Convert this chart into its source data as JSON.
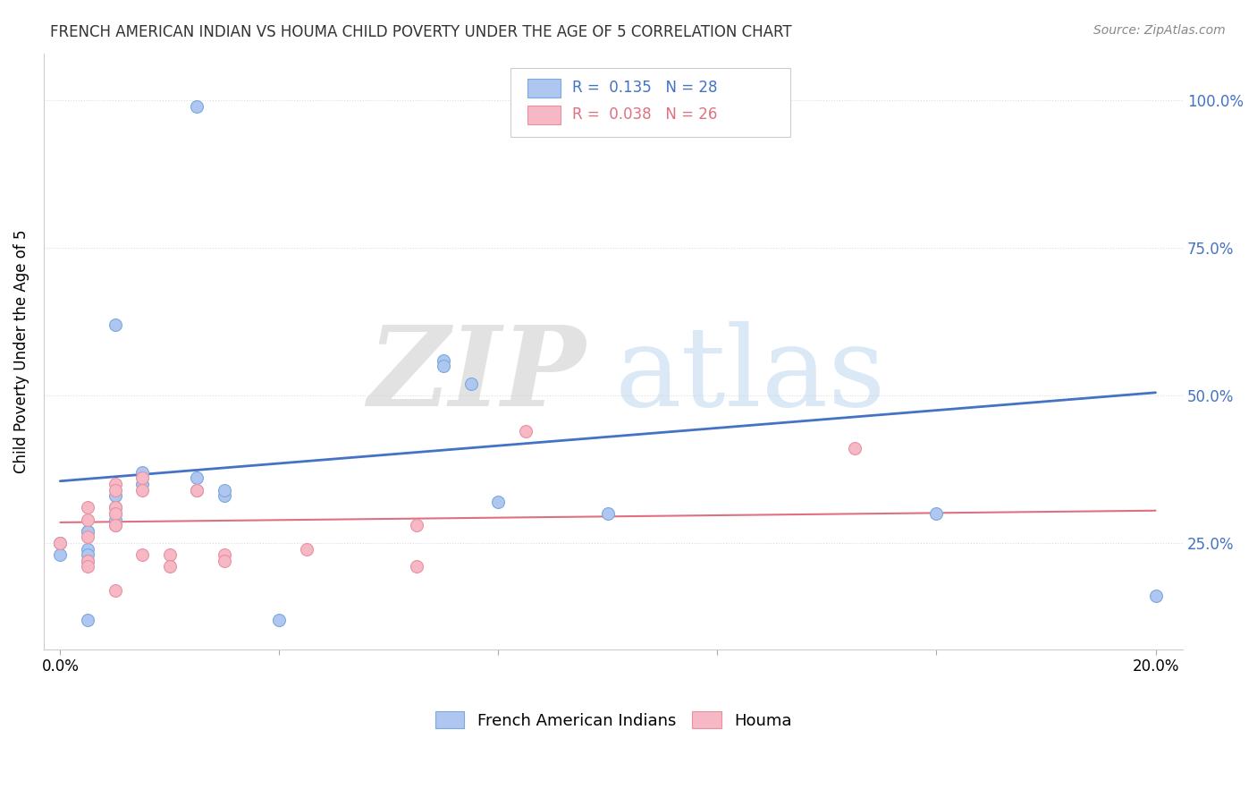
{
  "title": "FRENCH AMERICAN INDIAN VS HOUMA CHILD POVERTY UNDER THE AGE OF 5 CORRELATION CHART",
  "source": "Source: ZipAtlas.com",
  "ylabel": "Child Poverty Under the Age of 5",
  "yticks": [
    "100.0%",
    "75.0%",
    "50.0%",
    "25.0%"
  ],
  "ytick_vals": [
    1.0,
    0.75,
    0.5,
    0.25
  ],
  "blue_color": "#AEC6F0",
  "pink_color": "#F5B8C4",
  "blue_edge_color": "#7AAADE",
  "pink_edge_color": "#E891A0",
  "blue_line_color": "#4472C4",
  "pink_line_color": "#E07080",
  "blue_scatter_x": [
    0.025,
    0.01,
    0.01,
    0.01,
    0.005,
    0.005,
    0.005,
    0.005,
    0.005,
    0.01,
    0.01,
    0.015,
    0.015,
    0.025,
    0.025,
    0.03,
    0.03,
    0.07,
    0.07,
    0.075,
    0.08,
    0.1,
    0.16,
    0.2,
    0.0,
    0.0,
    0.005,
    0.04
  ],
  "blue_scatter_y": [
    0.99,
    0.62,
    0.31,
    0.3,
    0.27,
    0.27,
    0.24,
    0.23,
    0.22,
    0.29,
    0.33,
    0.35,
    0.37,
    0.36,
    0.34,
    0.33,
    0.34,
    0.56,
    0.55,
    0.52,
    0.32,
    0.3,
    0.3,
    0.16,
    0.25,
    0.23,
    0.12,
    0.12
  ],
  "pink_scatter_x": [
    0.005,
    0.005,
    0.005,
    0.0,
    0.005,
    0.005,
    0.01,
    0.01,
    0.01,
    0.01,
    0.01,
    0.01,
    0.01,
    0.015,
    0.015,
    0.015,
    0.02,
    0.02,
    0.025,
    0.03,
    0.03,
    0.045,
    0.065,
    0.065,
    0.085,
    0.145
  ],
  "pink_scatter_y": [
    0.31,
    0.29,
    0.26,
    0.25,
    0.22,
    0.21,
    0.35,
    0.34,
    0.31,
    0.3,
    0.28,
    0.28,
    0.17,
    0.36,
    0.34,
    0.23,
    0.23,
    0.21,
    0.34,
    0.23,
    0.22,
    0.24,
    0.28,
    0.21,
    0.44,
    0.41
  ],
  "blue_line_x": [
    0.0,
    0.2
  ],
  "blue_line_y": [
    0.355,
    0.505
  ],
  "pink_line_x": [
    0.0,
    0.2
  ],
  "pink_line_y": [
    0.285,
    0.305
  ],
  "xmin": -0.003,
  "xmax": 0.205,
  "ymin": 0.07,
  "ymax": 1.08,
  "xtick_positions": [
    0.0,
    0.04,
    0.08,
    0.12,
    0.16,
    0.2
  ],
  "legend_r1_text": "R =  0.135   N = 28",
  "legend_r2_text": "R =  0.038   N = 26",
  "legend_blue_r": "0.135",
  "legend_blue_n": "28",
  "legend_pink_r": "0.038",
  "legend_pink_n": "26",
  "bottom_legend_labels": [
    "French American Indians",
    "Houma"
  ]
}
